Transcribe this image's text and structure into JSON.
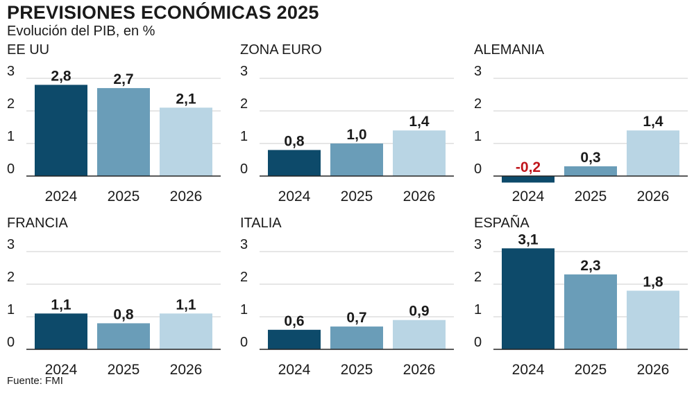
{
  "title": "PREVISIONES ECONÓMICAS 2025",
  "subtitle": "Evolución del PIB, en %",
  "source": "Fuente: FMI",
  "colors": {
    "y2024": "#0d4a6a",
    "y2025": "#6a9db8",
    "y2026": "#b9d5e4",
    "negative_label": "#c0161c",
    "text": "#1a1a1a",
    "grid": "#cccccc",
    "axis": "#222222"
  },
  "chart_data": [
    {
      "type": "bar",
      "title": "EE UU",
      "categories": [
        "2024",
        "2025",
        "2026"
      ],
      "values": [
        2.8,
        2.7,
        2.1
      ],
      "labels": [
        "2,8",
        "2,7",
        "2,1"
      ],
      "yticks": [
        "0",
        "1",
        "2",
        "3"
      ],
      "ylim": [
        0,
        3
      ],
      "grid": true
    },
    {
      "type": "bar",
      "title": "ZONA EURO",
      "categories": [
        "2024",
        "2025",
        "2026"
      ],
      "values": [
        0.8,
        1.0,
        1.4
      ],
      "labels": [
        "0,8",
        "1,0",
        "1,4"
      ],
      "yticks": [
        "0",
        "1",
        "2",
        "3"
      ],
      "ylim": [
        0,
        3
      ],
      "grid": true
    },
    {
      "type": "bar",
      "title": "ALEMANIA",
      "categories": [
        "2024",
        "2025",
        "2026"
      ],
      "values": [
        -0.2,
        0.3,
        1.4
      ],
      "labels": [
        "-0,2",
        "0,3",
        "1,4"
      ],
      "yticks": [
        "0",
        "1",
        "2",
        "3"
      ],
      "ylim": [
        0,
        3
      ],
      "grid": true
    },
    {
      "type": "bar",
      "title": "FRANCIA",
      "categories": [
        "2024",
        "2025",
        "2026"
      ],
      "values": [
        1.1,
        0.8,
        1.1
      ],
      "labels": [
        "1,1",
        "0,8",
        "1,1"
      ],
      "yticks": [
        "0",
        "1",
        "2",
        "3"
      ],
      "ylim": [
        0,
        3
      ],
      "grid": true
    },
    {
      "type": "bar",
      "title": "ITALIA",
      "categories": [
        "2024",
        "2025",
        "2026"
      ],
      "values": [
        0.6,
        0.7,
        0.9
      ],
      "labels": [
        "0,6",
        "0,7",
        "0,9"
      ],
      "yticks": [
        "0",
        "1",
        "2",
        "3"
      ],
      "ylim": [
        0,
        3
      ],
      "grid": true
    },
    {
      "type": "bar",
      "title": "ESPAÑA",
      "categories": [
        "2024",
        "2025",
        "2026"
      ],
      "values": [
        3.1,
        2.3,
        1.8
      ],
      "labels": [
        "3,1",
        "2,3",
        "1,8"
      ],
      "yticks": [
        "0",
        "1",
        "2",
        "3"
      ],
      "ylim": [
        0,
        3
      ],
      "grid": true
    }
  ]
}
